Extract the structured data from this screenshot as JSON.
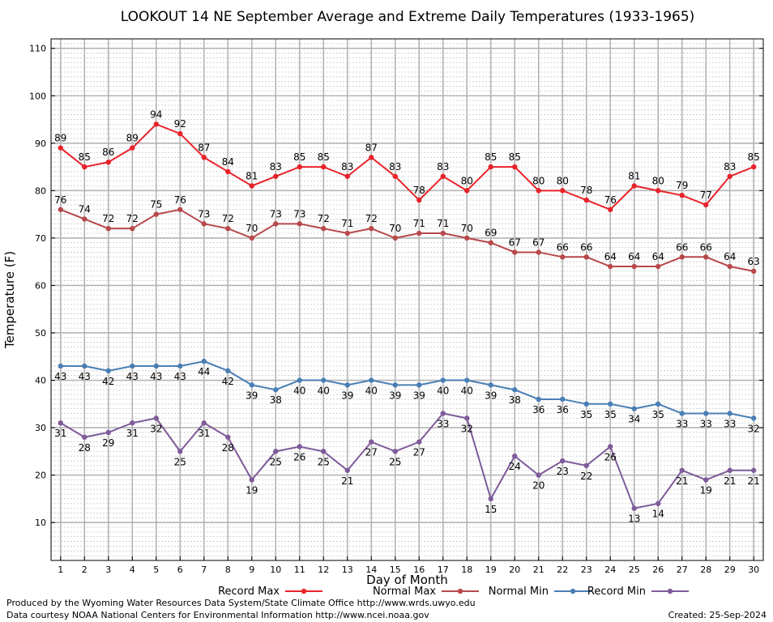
{
  "title": "LOOKOUT 14 NE September Average and Extreme Daily Temperatures (1933-1965)",
  "footer": {
    "produced_by": "Produced by the Wyoming Water Resources Data System/State Climate Office http://www.wrds.uwyo.edu",
    "courtesy": "Data courtesy NOAA National Centers for Environmental Information http://www.ncei.noaa.gov",
    "created": "Created:  25-Sep-2024"
  },
  "chart_data": {
    "type": "line",
    "title": "LOOKOUT 14 NE September Average and Extreme Daily Temperatures (1933-1965)",
    "xlabel": "Day of Month",
    "ylabel": "Temperature (F)",
    "xlim": [
      0.6,
      30.4
    ],
    "ylim": [
      2,
      112
    ],
    "yticks": [
      10,
      20,
      30,
      40,
      50,
      60,
      70,
      80,
      90,
      100,
      110
    ],
    "x": [
      1,
      2,
      3,
      4,
      5,
      6,
      7,
      8,
      9,
      10,
      11,
      12,
      13,
      14,
      15,
      16,
      17,
      18,
      19,
      20,
      21,
      22,
      23,
      24,
      25,
      26,
      27,
      28,
      29,
      30
    ],
    "grid": true,
    "legend_position": "bottom",
    "series": [
      {
        "name": "Record Max",
        "color": "#e8232a",
        "label_pos": "above",
        "values": [
          89,
          85,
          86,
          89,
          94,
          92,
          87,
          84,
          81,
          83,
          85,
          85,
          83,
          87,
          83,
          78,
          83,
          80,
          85,
          85,
          80,
          80,
          78,
          76,
          81,
          80,
          79,
          77,
          83,
          85
        ]
      },
      {
        "name": "Normal Max",
        "color": "#b7484b",
        "label_pos": "above",
        "values": [
          76,
          74,
          72,
          72,
          75,
          76,
          73,
          72,
          70,
          73,
          73,
          72,
          71,
          72,
          70,
          71,
          71,
          70,
          69,
          67,
          67,
          66,
          66,
          64,
          64,
          64,
          66,
          66,
          64,
          63
        ]
      },
      {
        "name": "Normal Min",
        "color": "#4a7fb5",
        "label_pos": "below",
        "values": [
          43,
          43,
          42,
          43,
          43,
          43,
          44,
          42,
          39,
          38,
          40,
          40,
          39,
          40,
          39,
          39,
          40,
          40,
          39,
          38,
          36,
          36,
          35,
          35,
          34,
          35,
          33,
          33,
          33,
          32
        ]
      },
      {
        "name": "Record Min",
        "color": "#7e5b9a",
        "label_pos": "below",
        "values": [
          31,
          28,
          29,
          31,
          32,
          25,
          31,
          28,
          19,
          25,
          26,
          25,
          21,
          27,
          25,
          27,
          33,
          32,
          15,
          24,
          20,
          23,
          22,
          26,
          13,
          14,
          21,
          19,
          21,
          21
        ]
      }
    ]
  }
}
